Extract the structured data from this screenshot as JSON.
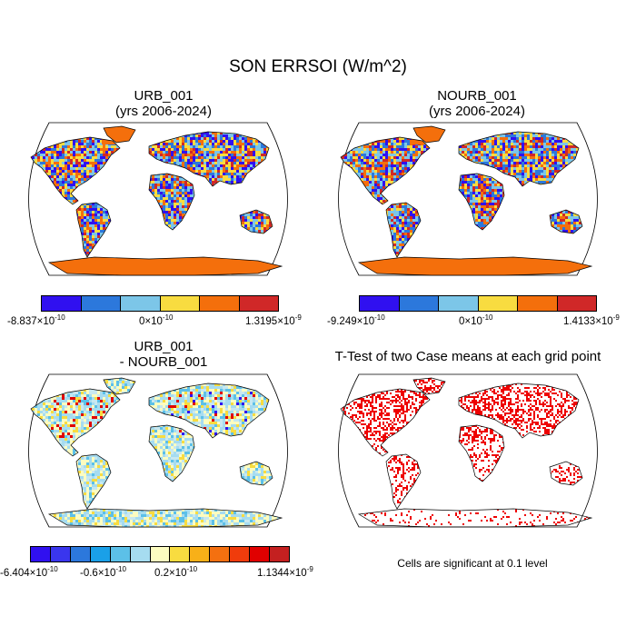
{
  "main_title": "SON ERRSOI (W/m^2)",
  "panels": [
    {
      "title": "URB_001",
      "subtitle": "(yrs 2006-2024)",
      "colorbar": {
        "colors": [
          "#3010f0",
          "#2c78dc",
          "#7cc6e8",
          "#f8dc40",
          "#f46f0c",
          "#d02828"
        ],
        "labels": [
          {
            "mantissa": "-8.837",
            "exp": "-10"
          },
          {
            "mantissa": "0",
            "exp": "-10"
          },
          {
            "mantissa": "1.3195",
            "exp": "-9"
          }
        ]
      }
    },
    {
      "title": "NOURB_001",
      "subtitle": "(yrs 2006-2024)",
      "colorbar": {
        "colors": [
          "#3010f0",
          "#2c78dc",
          "#7cc6e8",
          "#f8dc40",
          "#f46f0c",
          "#d02828"
        ],
        "labels": [
          {
            "mantissa": "-9.249",
            "exp": "-10"
          },
          {
            "mantissa": "0",
            "exp": "-10"
          },
          {
            "mantissa": "1.4133",
            "exp": "-9"
          }
        ]
      }
    },
    {
      "title": "URB_001",
      "subtitle": "- NOURB_001",
      "colorbar": {
        "colors": [
          "#3010f0",
          "#3a36ee",
          "#2c78dc",
          "#1aa0e8",
          "#5cc0e8",
          "#a6dcf0",
          "#fcfcc0",
          "#f8dc40",
          "#f8b018",
          "#f47010",
          "#f03c0c",
          "#e00000",
          "#c42020"
        ],
        "labels": [
          {
            "mantissa": "-6.404",
            "exp": "-10"
          },
          {
            "mantissa": "-0.6",
            "exp": "-10"
          },
          {
            "mantissa": "0.2",
            "exp": "-10"
          },
          {
            "mantissa": "1.1344",
            "exp": "-9"
          }
        ]
      }
    },
    {
      "title": "T-Test of two Case means at each grid point",
      "note": "Cells are significant at 0.1 level"
    }
  ]
}
